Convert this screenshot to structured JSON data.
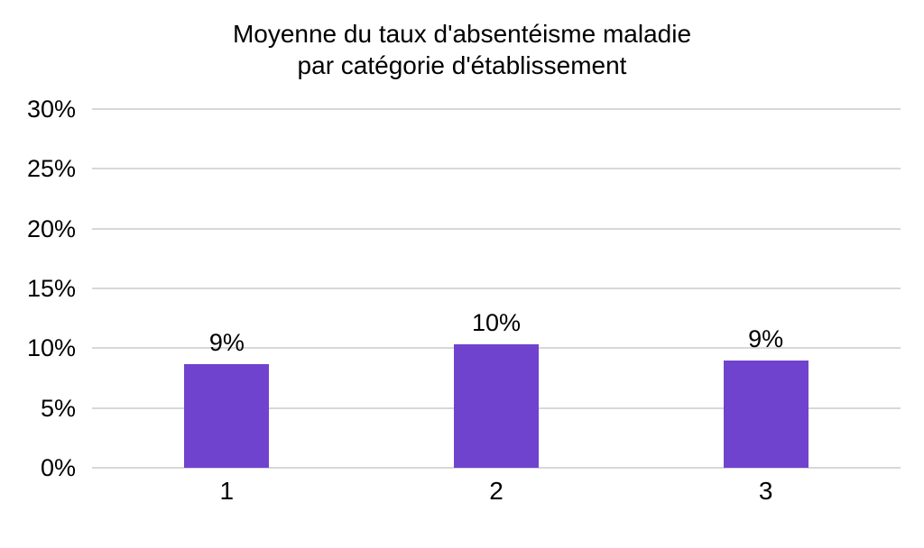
{
  "chart_data": {
    "type": "bar",
    "title": "Moyenne du taux d'absentéisme maladie par catégorie d'établissement",
    "title_lines": [
      "Moyenne du taux d'absentéisme maladie",
      "par catégorie d'établissement"
    ],
    "categories": [
      "1",
      "2",
      "3"
    ],
    "values": [
      8.7,
      10.3,
      9.0
    ],
    "data_labels": [
      "9%",
      "10%",
      "9%"
    ],
    "xlabel": "",
    "ylabel": "",
    "ylim": [
      0,
      30
    ],
    "y_ticks": [
      {
        "value": 30,
        "label": "30%"
      },
      {
        "value": 25,
        "label": "25%"
      },
      {
        "value": 20,
        "label": "20%"
      },
      {
        "value": 15,
        "label": "15%"
      },
      {
        "value": 10,
        "label": "10%"
      },
      {
        "value": 5,
        "label": "5%"
      },
      {
        "value": 0,
        "label": "0%"
      }
    ],
    "grid": true,
    "legend": "none",
    "colors": {
      "bar": "#7043CE",
      "gridline": "#D8D8D8",
      "text": "#000000",
      "background": "#FFFFFF"
    }
  }
}
